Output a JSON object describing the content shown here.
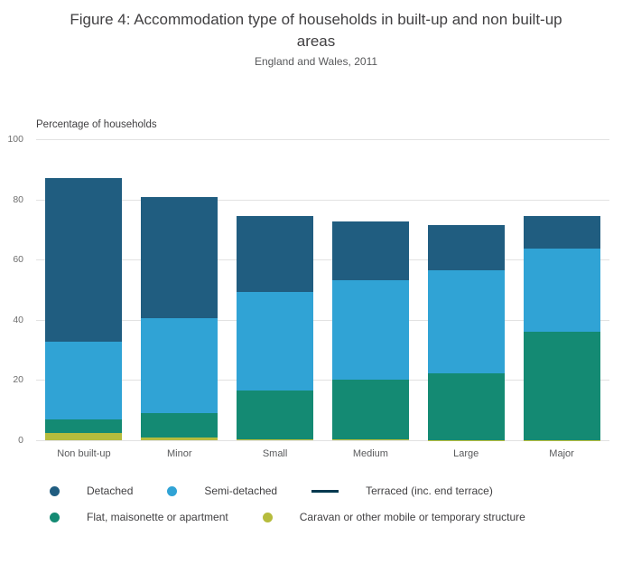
{
  "header": {
    "title": "Figure 4: Accommodation type of households in built-up and non built-up areas",
    "subtitle": "England and Wales, 2011"
  },
  "chart_data": {
    "type": "bar",
    "stacked": true,
    "title": "Figure 4: Accommodation type of households in built-up and non built-up areas",
    "subtitle": "England and Wales, 2011",
    "ylabel": "Percentage of households",
    "xlabel": "",
    "ylim": [
      0,
      100
    ],
    "yticks": [
      0,
      20,
      40,
      60,
      80,
      100
    ],
    "grid": true,
    "legend_position": "bottom",
    "categories": [
      "Non built-up",
      "Minor",
      "Small",
      "Medium",
      "Large",
      "Major"
    ],
    "series": [
      {
        "name": "Caravan or other mobile or temporary structure",
        "color": "#b6bc3d",
        "values": [
          2.3,
          1.0,
          0.3,
          0.2,
          0.1,
          0.1
        ]
      },
      {
        "name": "Flat, maisonette or apartment",
        "color": "#148a73",
        "values": [
          4.6,
          7.9,
          16.2,
          19.9,
          22.2,
          36.0
        ]
      },
      {
        "name": "Semi-detached",
        "color": "#30a3d5",
        "values": [
          25.9,
          31.6,
          32.7,
          33.1,
          34.2,
          27.5
        ]
      },
      {
        "name": "Detached",
        "color": "#205d80",
        "values": [
          54.3,
          40.3,
          25.3,
          19.4,
          15.0,
          11.0
        ]
      }
    ],
    "legend_rows": [
      [
        {
          "label": "Detached",
          "color": "#205d80",
          "marker": "circle"
        },
        {
          "label": "Semi-detached",
          "color": "#30a3d5",
          "marker": "circle"
        },
        {
          "label": "Terraced (inc. end terrace)",
          "color": "#00394f",
          "marker": "line"
        }
      ],
      [
        {
          "label": "Flat, maisonette or apartment",
          "color": "#148a73",
          "marker": "circle"
        },
        {
          "label": "Caravan or other mobile or temporary structure",
          "color": "#b6bc3d",
          "marker": "circle"
        }
      ]
    ]
  }
}
